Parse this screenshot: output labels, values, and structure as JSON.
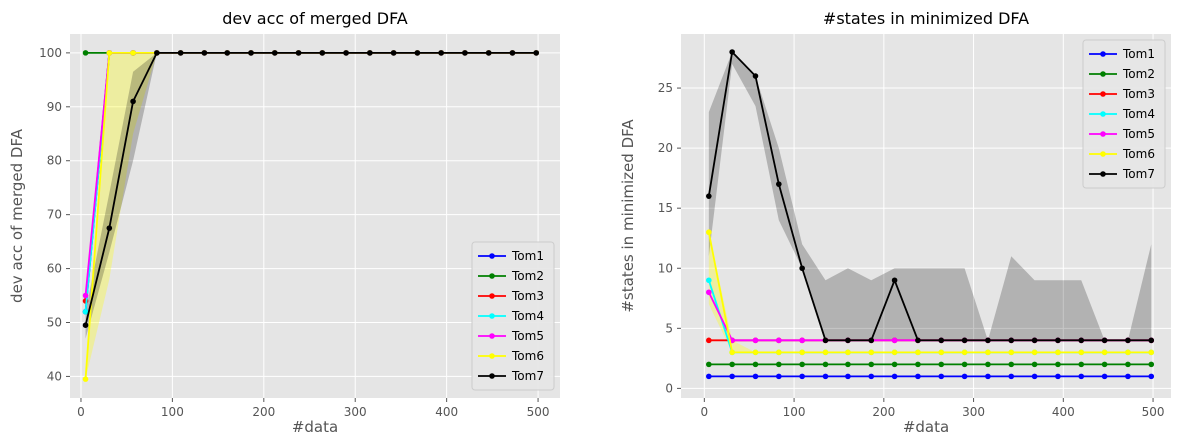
{
  "chart_data": [
    {
      "type": "line",
      "title": "dev acc of merged DFA",
      "xlabel": "#data",
      "ylabel": "dev acc of merged DFA",
      "xlim": [
        -12,
        524
      ],
      "ylim": [
        36,
        103.5
      ],
      "xticks": [
        0,
        100,
        200,
        300,
        400,
        500
      ],
      "yticks": [
        40,
        50,
        60,
        70,
        80,
        90,
        100
      ],
      "grid": true,
      "legend_position": "lower right",
      "x": [
        5,
        31,
        57,
        83,
        109,
        135,
        160,
        186,
        212,
        238,
        264,
        290,
        316,
        342,
        368,
        394,
        420,
        446,
        472,
        498
      ],
      "series": [
        {
          "name": "Tom1",
          "color": "#0000ff",
          "values": [
            52,
            100,
            100,
            100,
            100,
            100,
            100,
            100,
            100,
            100,
            100,
            100,
            100,
            100,
            100,
            100,
            100,
            100,
            100,
            100
          ]
        },
        {
          "name": "Tom2",
          "color": "#008000",
          "values": [
            100,
            100,
            100,
            100,
            100,
            100,
            100,
            100,
            100,
            100,
            100,
            100,
            100,
            100,
            100,
            100,
            100,
            100,
            100,
            100
          ]
        },
        {
          "name": "Tom3",
          "color": "#ff0000",
          "values": [
            54,
            100,
            100,
            100,
            100,
            100,
            100,
            100,
            100,
            100,
            100,
            100,
            100,
            100,
            100,
            100,
            100,
            100,
            100,
            100
          ]
        },
        {
          "name": "Tom4",
          "color": "#00ffff",
          "values": [
            52,
            100,
            100,
            100,
            100,
            100,
            100,
            100,
            100,
            100,
            100,
            100,
            100,
            100,
            100,
            100,
            100,
            100,
            100,
            100
          ]
        },
        {
          "name": "Tom5",
          "color": "#ff00ff",
          "values": [
            55,
            100,
            100,
            100,
            100,
            100,
            100,
            100,
            100,
            100,
            100,
            100,
            100,
            100,
            100,
            100,
            100,
            100,
            100,
            100
          ]
        },
        {
          "name": "Tom6",
          "color": "#ffff00",
          "values": [
            39.5,
            100,
            100,
            100,
            100,
            100,
            100,
            100,
            100,
            100,
            100,
            100,
            100,
            100,
            100,
            100,
            100,
            100,
            100,
            100
          ]
        },
        {
          "name": "Tom7",
          "color": "#000000",
          "values": [
            49.5,
            67.5,
            91,
            100,
            100,
            100,
            100,
            100,
            100,
            100,
            100,
            100,
            100,
            100,
            100,
            100,
            100,
            100,
            100,
            100
          ]
        }
      ],
      "bands": [
        {
          "series": "Tom6",
          "color": "#ffff00",
          "opacity": 0.3,
          "x": [
            5,
            31,
            57,
            83
          ],
          "lower": [
            39.5,
            58,
            85,
            100
          ],
          "upper": [
            39.5,
            100,
            100,
            100
          ]
        },
        {
          "series": "Tom7",
          "color": "#000000",
          "opacity": 0.22,
          "x": [
            5,
            31,
            57,
            83,
            109
          ],
          "lower": [
            47,
            63,
            80,
            100,
            100
          ],
          "upper": [
            52,
            74,
            96.5,
            100,
            100
          ]
        }
      ]
    },
    {
      "type": "line",
      "title": "#states in minimized DFA",
      "xlabel": "#data",
      "ylabel": "#states in minimized DFA",
      "xlim": [
        -26,
        520
      ],
      "ylim": [
        -0.8,
        29.5
      ],
      "xticks": [
        0,
        100,
        200,
        300,
        400,
        500
      ],
      "yticks": [
        0,
        5,
        10,
        15,
        20,
        25
      ],
      "grid": true,
      "legend_position": "upper right",
      "x": [
        5,
        31,
        57,
        83,
        109,
        135,
        160,
        186,
        212,
        238,
        264,
        290,
        316,
        342,
        368,
        394,
        420,
        446,
        472,
        498
      ],
      "series": [
        {
          "name": "Tom1",
          "color": "#0000ff",
          "values": [
            1,
            1,
            1,
            1,
            1,
            1,
            1,
            1,
            1,
            1,
            1,
            1,
            1,
            1,
            1,
            1,
            1,
            1,
            1,
            1
          ]
        },
        {
          "name": "Tom2",
          "color": "#008000",
          "values": [
            2,
            2,
            2,
            2,
            2,
            2,
            2,
            2,
            2,
            2,
            2,
            2,
            2,
            2,
            2,
            2,
            2,
            2,
            2,
            2
          ]
        },
        {
          "name": "Tom3",
          "color": "#ff0000",
          "values": [
            4,
            4,
            4,
            4,
            4,
            4,
            4,
            4,
            4,
            4,
            4,
            4,
            4,
            4,
            4,
            4,
            4,
            4,
            4,
            4
          ]
        },
        {
          "name": "Tom4",
          "color": "#00ffff",
          "values": [
            9,
            3,
            3,
            3,
            3,
            3,
            3,
            3,
            3,
            3,
            3,
            3,
            3,
            3,
            3,
            3,
            3,
            3,
            3,
            3
          ]
        },
        {
          "name": "Tom5",
          "color": "#ff00ff",
          "values": [
            8,
            4,
            4,
            4,
            4,
            4,
            4,
            4,
            4,
            4,
            4,
            4,
            4,
            4,
            4,
            4,
            4,
            4,
            4,
            4
          ]
        },
        {
          "name": "Tom6",
          "color": "#ffff00",
          "values": [
            13,
            3,
            3,
            3,
            3,
            3,
            3,
            3,
            3,
            3,
            3,
            3,
            3,
            3,
            3,
            3,
            3,
            3,
            3,
            3
          ]
        },
        {
          "name": "Tom7",
          "color": "#000000",
          "values": [
            16,
            28,
            26,
            17,
            10,
            4,
            4,
            4,
            9,
            4,
            4,
            4,
            4,
            4,
            4,
            4,
            4,
            4,
            4,
            4
          ]
        }
      ],
      "bands": [
        {
          "series": "Tom6",
          "color": "#ffff00",
          "opacity": 0.3,
          "x": [
            5,
            31,
            57
          ],
          "lower": [
            7,
            3,
            3
          ],
          "upper": [
            13,
            4,
            3
          ]
        },
        {
          "series": "Tom7",
          "color": "#000000",
          "opacity": 0.22,
          "x": [
            5,
            31,
            57,
            83,
            109,
            135,
            160,
            186,
            212,
            238,
            264,
            290,
            316,
            342,
            368,
            394,
            420,
            446,
            472,
            498
          ],
          "lower": [
            11,
            27,
            23.5,
            14,
            10,
            4,
            4,
            4,
            4,
            4,
            4,
            4,
            4,
            4,
            4,
            4,
            4,
            4,
            4,
            4
          ],
          "upper": [
            23,
            28,
            26,
            20,
            12,
            9,
            10,
            9,
            10,
            10,
            10,
            10,
            4,
            11,
            9,
            9,
            9,
            4,
            4,
            12
          ]
        }
      ]
    }
  ]
}
